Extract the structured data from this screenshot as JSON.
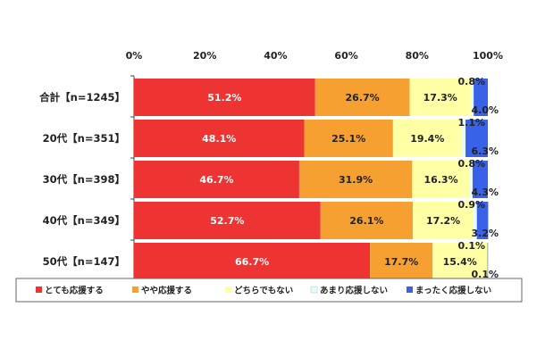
{
  "chart_data": {
    "type": "bar",
    "orientation": "horizontal",
    "stacked": true,
    "categories": [
      "合計【n=1245】",
      "20代【n=351】",
      "30代【n=398】",
      "40代【n=349】",
      "50代【n=147】"
    ],
    "x_ticks": [
      "0%",
      "20%",
      "40%",
      "60%",
      "80%",
      "100%"
    ],
    "xlim": [
      0,
      100
    ],
    "grid": false,
    "legend_position": "bottom",
    "series": [
      {
        "name": "とても応援する",
        "color": "#ee3333",
        "values": [
          51.2,
          48.1,
          46.7,
          52.7,
          66.7
        ],
        "labels": [
          "51.2%",
          "48.1%",
          "46.7%",
          "52.7%",
          "66.7%"
        ]
      },
      {
        "name": "やや応援する",
        "color": "#f5a030",
        "values": [
          26.7,
          25.1,
          31.9,
          26.1,
          17.7
        ],
        "labels": [
          "26.7%",
          "25.1%",
          "31.9%",
          "26.1%",
          "17.7%"
        ]
      },
      {
        "name": "どちらでもない",
        "color": "#ffffa6",
        "values": [
          17.3,
          19.4,
          16.3,
          17.2,
          15.4
        ],
        "labels": [
          "17.3%",
          "19.4%",
          "16.3%",
          "17.2%",
          "15.4%"
        ]
      },
      {
        "name": "あまり応援しない",
        "color": "#e6fbfd",
        "values": [
          0.8,
          1.1,
          0.8,
          0.9,
          0.1
        ],
        "labels": [
          "0.8%",
          "1.1%",
          "0.8%",
          "0.9%",
          "0.1%"
        ]
      },
      {
        "name": "まったく応援しない",
        "color": "#3a62e8",
        "values": [
          4.0,
          6.3,
          4.3,
          3.2,
          0.1
        ],
        "labels": [
          "4.0%",
          "6.3%",
          "4.3%",
          "3.2%",
          "0.1%"
        ]
      }
    ]
  }
}
